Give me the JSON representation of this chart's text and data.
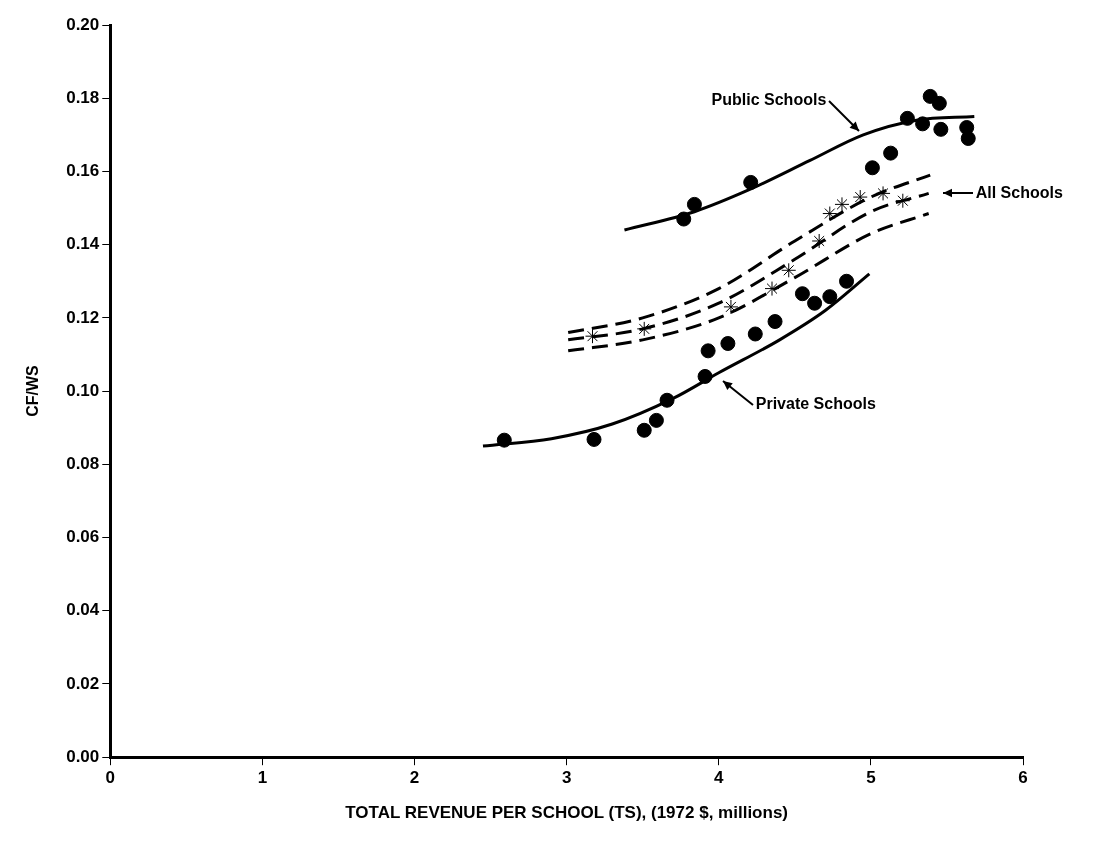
{
  "chart_data": {
    "type": "scatter",
    "xlabel": "TOTAL REVENUE PER SCHOOL (TS), (1972 $, millions)",
    "ylabel": "CF/WS",
    "xlim": [
      0,
      6
    ],
    "xticks": [
      0,
      1,
      2,
      3,
      4,
      5,
      6
    ],
    "ylim": [
      0,
      0.2
    ],
    "yticks": [
      {
        "value": 0,
        "label": "0.00"
      },
      {
        "value": 0.02,
        "label": "0.02"
      },
      {
        "value": 0.04,
        "label": "0.04"
      },
      {
        "value": 0.06,
        "label": "0.06"
      },
      {
        "value": 0.08,
        "label": "0.08"
      },
      {
        "value": 0.1,
        "label": "0.10"
      },
      {
        "value": 0.12,
        "label": "0.12"
      },
      {
        "value": 0.14,
        "label": "0.14"
      },
      {
        "value": 0.16,
        "label": "0.16"
      },
      {
        "value": 0.18,
        "label": "0.18"
      },
      {
        "value": 0.2,
        "label": "0.20"
      }
    ],
    "grid": false,
    "legend": false,
    "series": [
      {
        "type": "scatter",
        "marker": "circle",
        "color": "#000000",
        "x": [
          3.77,
          3.84,
          4.21,
          5.01,
          5.13,
          5.24,
          5.34,
          5.39,
          5.45,
          5.46,
          5.63,
          5.64
        ],
        "values": [
          0.147,
          0.151,
          0.157,
          0.161,
          0.165,
          0.1745,
          0.173,
          0.1805,
          0.1786,
          0.1715,
          0.172,
          0.169
        ]
      },
      {
        "type": "scatter",
        "marker": "cross",
        "color": "#000000",
        "x": [
          3.17,
          3.51,
          4.08,
          4.35,
          4.46,
          4.66,
          4.73,
          4.81,
          4.93,
          5.08,
          5.21
        ],
        "values": [
          0.115,
          0.117,
          0.123,
          0.128,
          0.133,
          0.141,
          0.1485,
          0.151,
          0.153,
          0.154,
          0.152
        ]
      },
      {
        "type": "scatter",
        "marker": "circle",
        "color": "#000000",
        "x": [
          2.59,
          3.18,
          3.51,
          3.59,
          3.66,
          3.91,
          3.93,
          4.06,
          4.24,
          4.37,
          4.55,
          4.63,
          4.73,
          4.84
        ],
        "values": [
          0.0866,
          0.0868,
          0.0893,
          0.092,
          0.0975,
          0.104,
          0.111,
          0.113,
          0.1156,
          0.119,
          0.1266,
          0.124,
          0.1258,
          0.13
        ]
      },
      {
        "type": "line",
        "marker": "none",
        "line_style": "solid",
        "color": "#000000",
        "x": [
          3.38,
          3.84,
          4.2,
          4.6,
          4.95,
          5.3,
          5.68
        ],
        "values": [
          0.144,
          0.149,
          0.155,
          0.163,
          0.17,
          0.174,
          0.175
        ]
      },
      {
        "type": "line",
        "marker": "none",
        "line_style": "solid",
        "color": "#000000",
        "x": [
          2.45,
          2.9,
          3.3,
          3.7,
          4.0,
          4.4,
          4.7,
          4.99
        ],
        "values": [
          0.085,
          0.087,
          0.091,
          0.098,
          0.105,
          0.114,
          0.122,
          0.132
        ]
      },
      {
        "type": "line",
        "marker": "none",
        "line_style": "dashed",
        "color": "#000000",
        "x": [
          3.01,
          3.5,
          4.0,
          4.5,
          5.0,
          5.38
        ],
        "values": [
          0.114,
          0.117,
          0.124,
          0.136,
          0.149,
          0.154
        ]
      },
      {
        "type": "line",
        "marker": "none",
        "line_style": "dashed",
        "color": "#000000",
        "x": [
          3.01,
          3.5,
          4.0,
          4.5,
          5.0,
          5.39
        ],
        "values": [
          0.116,
          0.12,
          0.128,
          0.141,
          0.153,
          0.159
        ]
      },
      {
        "type": "line",
        "marker": "none",
        "line_style": "dashed",
        "color": "#000000",
        "x": [
          3.01,
          3.5,
          4.0,
          4.5,
          5.0,
          5.38
        ],
        "values": [
          0.111,
          0.114,
          0.12,
          0.131,
          0.143,
          0.1485
        ]
      }
    ],
    "annotations": [
      {
        "text": "Public Schools",
        "x": 4.95,
        "y": 0.17
      },
      {
        "text": "All Schools",
        "x": 5.38,
        "y": 0.154
      },
      {
        "text": "Private Schools",
        "x": 4.0,
        "y": 0.105
      }
    ]
  }
}
